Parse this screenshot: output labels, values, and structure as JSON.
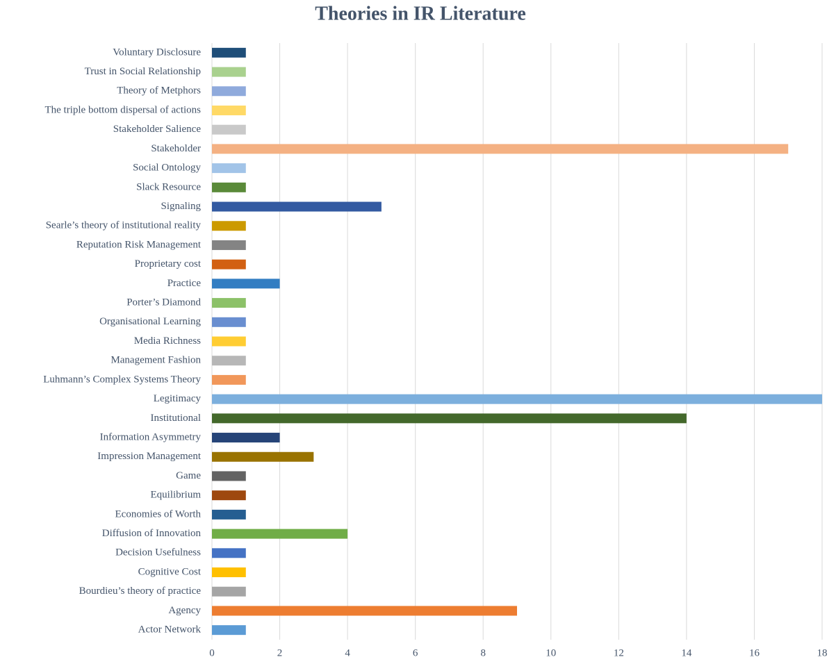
{
  "chart_data": {
    "type": "bar",
    "orientation": "horizontal",
    "title": "Theories in IR Literature",
    "categories": [
      "Actor Network",
      "Agency",
      "Bourdieu’s theory of practice",
      "Cognitive Cost",
      "Decision Usefulness",
      "Diffusion of Innovation",
      "Economies of Worth",
      "Equilibrium",
      "Game",
      "Impression Management",
      "Information Asymmetry",
      "Institutional",
      "Legitimacy",
      "Luhmann’s Complex Systems Theory",
      "Management Fashion",
      "Media Richness",
      "Organisational Learning",
      "Porter’s Diamond",
      "Practice",
      "Proprietary cost",
      "Reputation Risk Management",
      "Searle’s theory of institutional reality",
      "Signaling",
      "Slack Resource",
      "Social Ontology",
      "Stakeholder",
      "Stakeholder Salience",
      "The triple bottom dispersal of actions",
      "Theory of Metphors",
      "Trust in Social Relationship",
      "Voluntary Disclosure"
    ],
    "values": [
      1,
      9,
      1,
      1,
      1,
      4,
      1,
      1,
      1,
      3,
      2,
      14,
      18,
      1,
      1,
      1,
      1,
      1,
      2,
      1,
      1,
      1,
      5,
      1,
      1,
      17,
      1,
      1,
      1,
      1,
      1
    ],
    "colors": [
      "#5b9bd5",
      "#ed7d31",
      "#a5a5a5",
      "#ffc000",
      "#4472c4",
      "#70ad47",
      "#255e91",
      "#9e480e",
      "#636363",
      "#997300",
      "#264478",
      "#43682b",
      "#7cafdd",
      "#f1975a",
      "#b7b7b7",
      "#ffcd33",
      "#698ed0",
      "#8cc168",
      "#327dc2",
      "#d26012",
      "#848484",
      "#cc9a00",
      "#335aa1",
      "#5a8a39",
      "#a2c4e8",
      "#f4b183",
      "#c9c9c9",
      "#ffd966",
      "#8faadc",
      "#a9d18e",
      "#1f4e79"
    ],
    "xlim": [
      0,
      18
    ],
    "xticks": [
      0,
      2,
      4,
      6,
      8,
      10,
      12,
      14,
      16,
      18
    ],
    "grid": true
  }
}
